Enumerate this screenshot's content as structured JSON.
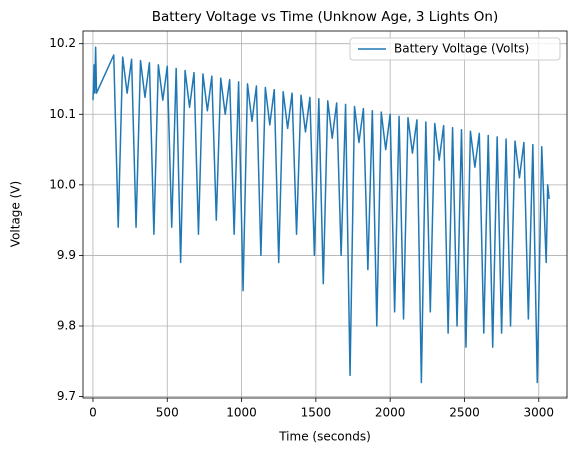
{
  "chart_data": {
    "type": "line",
    "title": "Battery Voltage vs Time (Unknow Age, 3 Lights On)",
    "xlabel": "Time (seconds)",
    "ylabel": "Voltage (V)",
    "x": [
      0,
      8,
      12,
      18,
      24,
      140,
      170,
      200,
      230,
      260,
      290,
      320,
      350,
      380,
      410,
      440,
      470,
      500,
      530,
      560,
      590,
      620,
      650,
      680,
      710,
      740,
      770,
      800,
      830,
      860,
      890,
      920,
      950,
      980,
      1010,
      1040,
      1070,
      1100,
      1130,
      1160,
      1190,
      1220,
      1250,
      1280,
      1310,
      1340,
      1370,
      1400,
      1430,
      1460,
      1490,
      1520,
      1550,
      1580,
      1610,
      1640,
      1670,
      1700,
      1730,
      1760,
      1790,
      1820,
      1850,
      1880,
      1910,
      1940,
      1970,
      2000,
      2030,
      2060,
      2090,
      2120,
      2150,
      2180,
      2210,
      2240,
      2270,
      2300,
      2330,
      2360,
      2390,
      2420,
      2450,
      2480,
      2510,
      2540,
      2570,
      2600,
      2630,
      2660,
      2690,
      2720,
      2750,
      2780,
      2810,
      2840,
      2870,
      2900,
      2930,
      2960,
      2990,
      3020,
      3050,
      3060,
      3070
    ],
    "series": [
      {
        "name": "Battery Voltage (Volts)",
        "color": "#1f77b4",
        "values": [
          10.12,
          10.17,
          10.13,
          10.195,
          10.13,
          10.184,
          9.94,
          10.181,
          10.13,
          10.178,
          9.94,
          10.176,
          10.124,
          10.173,
          9.93,
          10.17,
          10.12,
          10.168,
          9.94,
          10.165,
          9.89,
          10.162,
          10.11,
          10.159,
          9.93,
          10.157,
          10.105,
          10.154,
          9.95,
          10.151,
          10.1,
          10.149,
          9.93,
          10.146,
          9.85,
          10.143,
          10.09,
          10.14,
          9.9,
          10.138,
          10.085,
          10.135,
          9.89,
          10.132,
          10.08,
          10.13,
          9.93,
          10.127,
          10.075,
          10.124,
          9.9,
          10.122,
          9.86,
          10.119,
          10.066,
          10.116,
          9.9,
          10.114,
          9.73,
          10.111,
          10.06,
          10.108,
          9.88,
          10.105,
          9.8,
          10.103,
          10.05,
          10.1,
          9.82,
          10.097,
          9.81,
          10.095,
          10.045,
          10.092,
          9.72,
          10.089,
          9.82,
          10.087,
          10.035,
          10.084,
          9.79,
          10.081,
          9.8,
          10.078,
          9.77,
          10.076,
          10.025,
          10.073,
          9.79,
          10.07,
          9.77,
          10.068,
          9.79,
          10.065,
          9.8,
          10.062,
          10.01,
          10.06,
          9.81,
          10.057,
          9.72,
          10.054,
          9.89,
          10.0,
          9.98
        ]
      }
    ],
    "xlim": [
      -67,
      3190
    ],
    "xticks": [
      0,
      500,
      1000,
      1500,
      2000,
      2500,
      3000
    ],
    "ylim": [
      9.698,
      10.218
    ],
    "yticks": [
      9.7,
      9.8,
      9.9,
      {
        "value": 10,
        "label": "10.0"
      },
      10.1,
      10.2
    ],
    "grid": true,
    "legend": "upper right"
  }
}
